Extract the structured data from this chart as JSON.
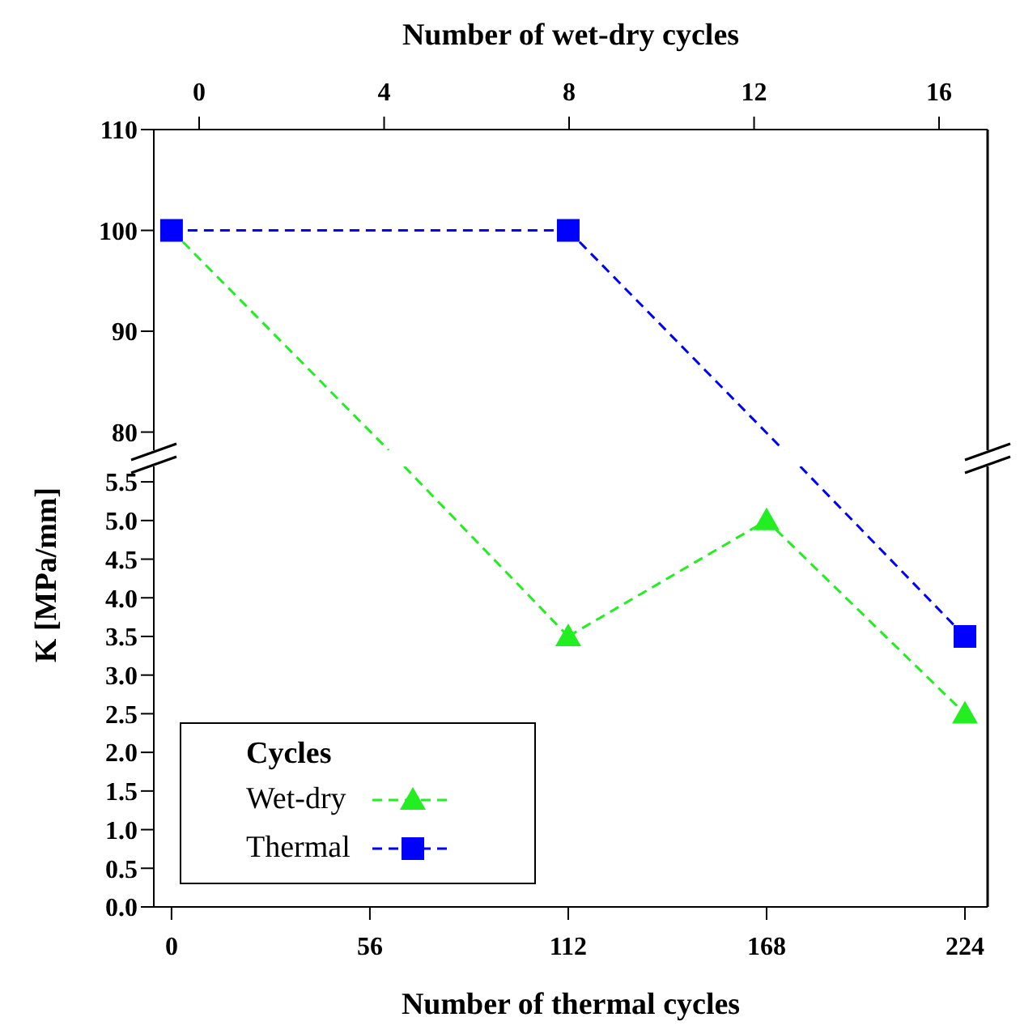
{
  "chart_data": [
    {
      "type": "line",
      "x2label": "Number of wet-dry cycles",
      "tick_labels": "y",
      "line_style": "dashed",
      "grid": false,
      "xlim": [
        -5,
        230.4
      ],
      "x2lim": [
        -0.98,
        17.05
      ],
      "x2ticks": [
        0,
        4,
        8,
        12,
        16
      ],
      "ylim": [
        78.2,
        110
      ],
      "yticks": [
        80,
        90,
        100,
        110
      ],
      "series": [
        {
          "color": "#22ee22",
          "x": [
            0,
            61.3
          ],
          "values": [
            100,
            78.2
          ]
        },
        {
          "color": "#0000ff",
          "x": [
            112,
            172.8
          ],
          "values": [
            100,
            78.2
          ]
        },
        {
          "color": "#0000ff",
          "marker": "square",
          "x": [
            0,
            112
          ],
          "values": [
            100,
            100
          ]
        }
      ]
    },
    {
      "type": "line",
      "xlabel": "Number of thermal cycles",
      "ylabel": "K [MPa/mm]",
      "legend_title": "Cycles",
      "legend": "bottom left",
      "line_style": "dashed",
      "grid": false,
      "xlim": [
        -5,
        230.4
      ],
      "xticks": [
        0,
        56,
        112,
        168,
        224
      ],
      "ylim": [
        0,
        5.7
      ],
      "yticks": [
        {
          "value": 0,
          "label": "0.0"
        },
        {
          "value": 0.5,
          "label": "0.5"
        },
        {
          "value": 1,
          "label": "1.0"
        },
        {
          "value": 1.5,
          "label": "1.5"
        },
        {
          "value": 2,
          "label": "2.0"
        },
        {
          "value": 2.5,
          "label": "2.5"
        },
        {
          "value": 3,
          "label": "3.0"
        },
        {
          "value": 3.5,
          "label": "3.5"
        },
        {
          "value": 4,
          "label": "4.0"
        },
        {
          "value": 4.5,
          "label": "4.5"
        },
        {
          "value": 5,
          "label": "5.0"
        },
        {
          "value": 5.5,
          "label": "5.5"
        }
      ],
      "series": [
        {
          "color": "#22ee22",
          "x": [
            65.7,
            112
          ],
          "values": [
            5.7,
            3.5
          ]
        },
        {
          "name": "Wet-dry",
          "color": "#22ee22",
          "marker": "triangle",
          "x": [
            112,
            168,
            224
          ],
          "values": [
            3.5,
            5.0,
            2.5
          ]
        },
        {
          "color": "#0000ff",
          "x": [
            177.5,
            224
          ],
          "values": [
            5.7,
            3.5
          ]
        },
        {
          "name": "Thermal",
          "color": "#0000ff",
          "marker": "square",
          "x": [
            224
          ],
          "values": [
            3.5
          ]
        }
      ]
    }
  ]
}
